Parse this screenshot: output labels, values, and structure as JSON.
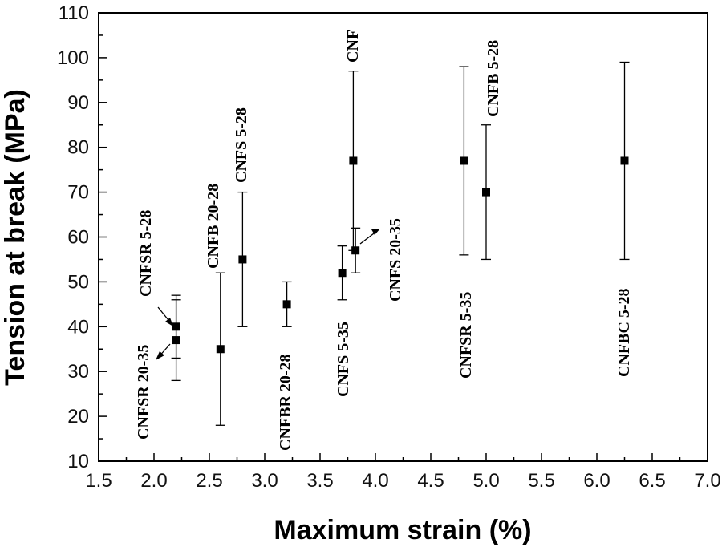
{
  "chart_data": {
    "type": "scatter",
    "title": "",
    "xlabel": "Maximum strain (%)",
    "ylabel": "Tension at break (MPa)",
    "xlim": [
      1.5,
      7.0
    ],
    "ylim": [
      10,
      110
    ],
    "xticks": [
      "1.5",
      "2.0",
      "2.5",
      "3.0",
      "3.5",
      "4.0",
      "4.5",
      "5.0",
      "5.5",
      "6.0",
      "6.5",
      "7.0"
    ],
    "yticks": [
      "10",
      "20",
      "30",
      "40",
      "50",
      "60",
      "70",
      "80",
      "90",
      "100",
      "110"
    ],
    "points": [
      {
        "label": "CNFSR 5-28",
        "x": 2.2,
        "y": 40,
        "ylow": 33,
        "yhigh": 47
      },
      {
        "label": "CNFSR 20-35",
        "x": 2.2,
        "y": 37,
        "ylow": 28,
        "yhigh": 46
      },
      {
        "label": "CNFB 20-28",
        "x": 2.6,
        "y": 35,
        "ylow": 18,
        "yhigh": 52
      },
      {
        "label": "CNFS 5-28",
        "x": 2.8,
        "y": 55,
        "ylow": 40,
        "yhigh": 70
      },
      {
        "label": "CNFBR 20-28",
        "x": 3.2,
        "y": 45,
        "ylow": 40,
        "yhigh": 50
      },
      {
        "label": "CNFS 5-35",
        "x": 3.7,
        "y": 52,
        "ylow": 46,
        "yhigh": 58
      },
      {
        "label": "CNF",
        "x": 3.8,
        "y": 77,
        "ylow": 57,
        "yhigh": 97
      },
      {
        "label": "CNFS 20-35",
        "x": 3.82,
        "y": 57,
        "ylow": 52,
        "yhigh": 62
      },
      {
        "label": "CNFSR 5-35",
        "x": 4.8,
        "y": 77,
        "ylow": 56,
        "yhigh": 98
      },
      {
        "label": "CNFB 5-28",
        "x": 5.0,
        "y": 70,
        "ylow": 55,
        "yhigh": 85
      },
      {
        "label": "CNFBC 5-28",
        "x": 6.25,
        "y": 77,
        "ylow": 55,
        "yhigh": 99
      }
    ]
  }
}
